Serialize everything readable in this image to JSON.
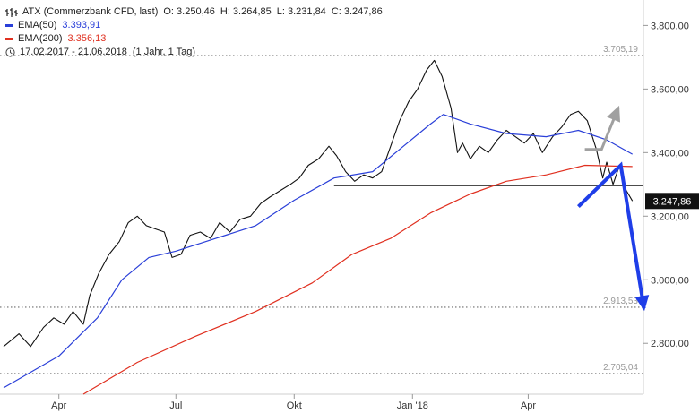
{
  "legend": {
    "instrument": "ATX (Commerzbank CFD, last)",
    "open": "O: 3.250,46",
    "high": "H: 3.264,85",
    "low": "L: 3.231,84",
    "close": "C: 3.247,86",
    "ema50_label": "EMA(50)",
    "ema50_value": "3.393,91",
    "ema200_label": "EMA(200)",
    "ema200_value": "3.356,13",
    "range": "17.02.2017 - 21.06.2018",
    "period": "(1 Jahr, 1 Tag)"
  },
  "colors": {
    "ema50": "#2a3fd8",
    "ema200": "#e03020",
    "price": "#111111",
    "arrow_down": "#1f3ee8",
    "arrow_up": "#a0a0a0"
  },
  "chart_data": {
    "type": "line",
    "y_axis": {
      "side": "right",
      "ylim": [
        2640,
        3880
      ],
      "ticks": [
        "3.800,00",
        "3.600,00",
        "3.400,00",
        "3.200,00",
        "3.000,00",
        "2.800,00"
      ],
      "tick_values": [
        3800,
        3600,
        3400,
        3200,
        3000,
        2800
      ]
    },
    "x_axis": {
      "labels": [
        "Apr",
        "Jul",
        "Okt",
        "Jan '18",
        "Apr"
      ],
      "label_dates": [
        "2017-04-01",
        "2017-07-01",
        "2017-10-01",
        "2018-01-01",
        "2018-04-01"
      ],
      "range": [
        "2017-02-17",
        "2018-06-21"
      ]
    },
    "current_price": {
      "label": "3.247,86",
      "value": 3247.86
    },
    "reference_lines": [
      {
        "label": "3.705,19",
        "value": 3705.19,
        "style": "dotted"
      },
      {
        "label": "2.913,53",
        "value": 2913.53,
        "style": "dotted"
      },
      {
        "label": "2.705,04",
        "value": 2705.04,
        "style": "dotted"
      },
      {
        "label": "",
        "value": 3295,
        "style": "solid",
        "from_date": "2017-11-01"
      }
    ],
    "series": [
      {
        "key": "price",
        "values": [
          [
            "2017-02-17",
            2790
          ],
          [
            "2017-03-01",
            2830
          ],
          [
            "2017-03-10",
            2790
          ],
          [
            "2017-03-20",
            2850
          ],
          [
            "2017-03-28",
            2880
          ],
          [
            "2017-04-05",
            2860
          ],
          [
            "2017-04-12",
            2900
          ],
          [
            "2017-04-20",
            2860
          ],
          [
            "2017-04-25",
            2950
          ],
          [
            "2017-05-02",
            3020
          ],
          [
            "2017-05-10",
            3080
          ],
          [
            "2017-05-18",
            3120
          ],
          [
            "2017-05-25",
            3180
          ],
          [
            "2017-06-01",
            3200
          ],
          [
            "2017-06-08",
            3170
          ],
          [
            "2017-06-15",
            3160
          ],
          [
            "2017-06-22",
            3150
          ],
          [
            "2017-06-28",
            3070
          ],
          [
            "2017-07-05",
            3080
          ],
          [
            "2017-07-12",
            3140
          ],
          [
            "2017-07-20",
            3150
          ],
          [
            "2017-07-28",
            3130
          ],
          [
            "2017-08-04",
            3180
          ],
          [
            "2017-08-12",
            3150
          ],
          [
            "2017-08-20",
            3190
          ],
          [
            "2017-08-28",
            3200
          ],
          [
            "2017-09-05",
            3240
          ],
          [
            "2017-09-12",
            3260
          ],
          [
            "2017-09-20",
            3280
          ],
          [
            "2017-09-28",
            3300
          ],
          [
            "2017-10-05",
            3320
          ],
          [
            "2017-10-12",
            3360
          ],
          [
            "2017-10-20",
            3380
          ],
          [
            "2017-10-28",
            3420
          ],
          [
            "2017-11-03",
            3390
          ],
          [
            "2017-11-10",
            3340
          ],
          [
            "2017-11-17",
            3310
          ],
          [
            "2017-11-24",
            3330
          ],
          [
            "2017-12-01",
            3320
          ],
          [
            "2017-12-08",
            3340
          ],
          [
            "2017-12-15",
            3420
          ],
          [
            "2017-12-22",
            3500
          ],
          [
            "2017-12-29",
            3560
          ],
          [
            "2018-01-05",
            3600
          ],
          [
            "2018-01-12",
            3660
          ],
          [
            "2018-01-18",
            3690
          ],
          [
            "2018-01-24",
            3640
          ],
          [
            "2018-01-31",
            3540
          ],
          [
            "2018-02-05",
            3400
          ],
          [
            "2018-02-09",
            3430
          ],
          [
            "2018-02-15",
            3380
          ],
          [
            "2018-02-22",
            3420
          ],
          [
            "2018-03-01",
            3400
          ],
          [
            "2018-03-08",
            3440
          ],
          [
            "2018-03-15",
            3470
          ],
          [
            "2018-03-22",
            3450
          ],
          [
            "2018-03-29",
            3430
          ],
          [
            "2018-04-05",
            3460
          ],
          [
            "2018-04-12",
            3400
          ],
          [
            "2018-04-20",
            3450
          ],
          [
            "2018-04-27",
            3480
          ],
          [
            "2018-05-04",
            3520
          ],
          [
            "2018-05-10",
            3530
          ],
          [
            "2018-05-17",
            3500
          ],
          [
            "2018-05-24",
            3410
          ],
          [
            "2018-05-29",
            3320
          ],
          [
            "2018-06-01",
            3370
          ],
          [
            "2018-06-06",
            3300
          ],
          [
            "2018-06-11",
            3360
          ],
          [
            "2018-06-15",
            3290
          ],
          [
            "2018-06-21",
            3247.86
          ]
        ]
      },
      {
        "key": "ema50",
        "name": "EMA(50)",
        "values": [
          [
            "2017-02-17",
            2660
          ],
          [
            "2017-04-01",
            2760
          ],
          [
            "2017-05-01",
            2880
          ],
          [
            "2017-05-20",
            3000
          ],
          [
            "2017-06-10",
            3070
          ],
          [
            "2017-07-01",
            3090
          ],
          [
            "2017-08-01",
            3130
          ],
          [
            "2017-09-01",
            3170
          ],
          [
            "2017-10-01",
            3250
          ],
          [
            "2017-11-01",
            3320
          ],
          [
            "2017-12-01",
            3340
          ],
          [
            "2017-12-25",
            3420
          ],
          [
            "2018-01-15",
            3490
          ],
          [
            "2018-01-25",
            3520
          ],
          [
            "2018-02-15",
            3490
          ],
          [
            "2018-03-15",
            3460
          ],
          [
            "2018-04-15",
            3450
          ],
          [
            "2018-05-10",
            3470
          ],
          [
            "2018-06-01",
            3440
          ],
          [
            "2018-06-21",
            3395
          ]
        ]
      },
      {
        "key": "ema200",
        "name": "EMA(200)",
        "values": [
          [
            "2017-04-20",
            2640
          ],
          [
            "2017-06-01",
            2740
          ],
          [
            "2017-07-15",
            2820
          ],
          [
            "2017-09-01",
            2900
          ],
          [
            "2017-10-15",
            2990
          ],
          [
            "2017-11-15",
            3080
          ],
          [
            "2017-12-15",
            3130
          ],
          [
            "2018-01-15",
            3210
          ],
          [
            "2018-02-15",
            3270
          ],
          [
            "2018-03-15",
            3310
          ],
          [
            "2018-04-15",
            3330
          ],
          [
            "2018-05-15",
            3360
          ],
          [
            "2018-06-21",
            3356
          ]
        ]
      }
    ],
    "annotations": [
      {
        "kind": "arrow",
        "color_key": "arrow_up",
        "points": [
          [
            "2018-05-15",
            3410
          ],
          [
            "2018-05-28",
            3410
          ],
          [
            "2018-06-10",
            3540
          ]
        ]
      },
      {
        "kind": "arrow",
        "color_key": "arrow_down",
        "points": [
          [
            "2018-05-10",
            3230
          ],
          [
            "2018-06-12",
            3360
          ],
          [
            "2018-06-30",
            2910
          ]
        ]
      }
    ]
  }
}
